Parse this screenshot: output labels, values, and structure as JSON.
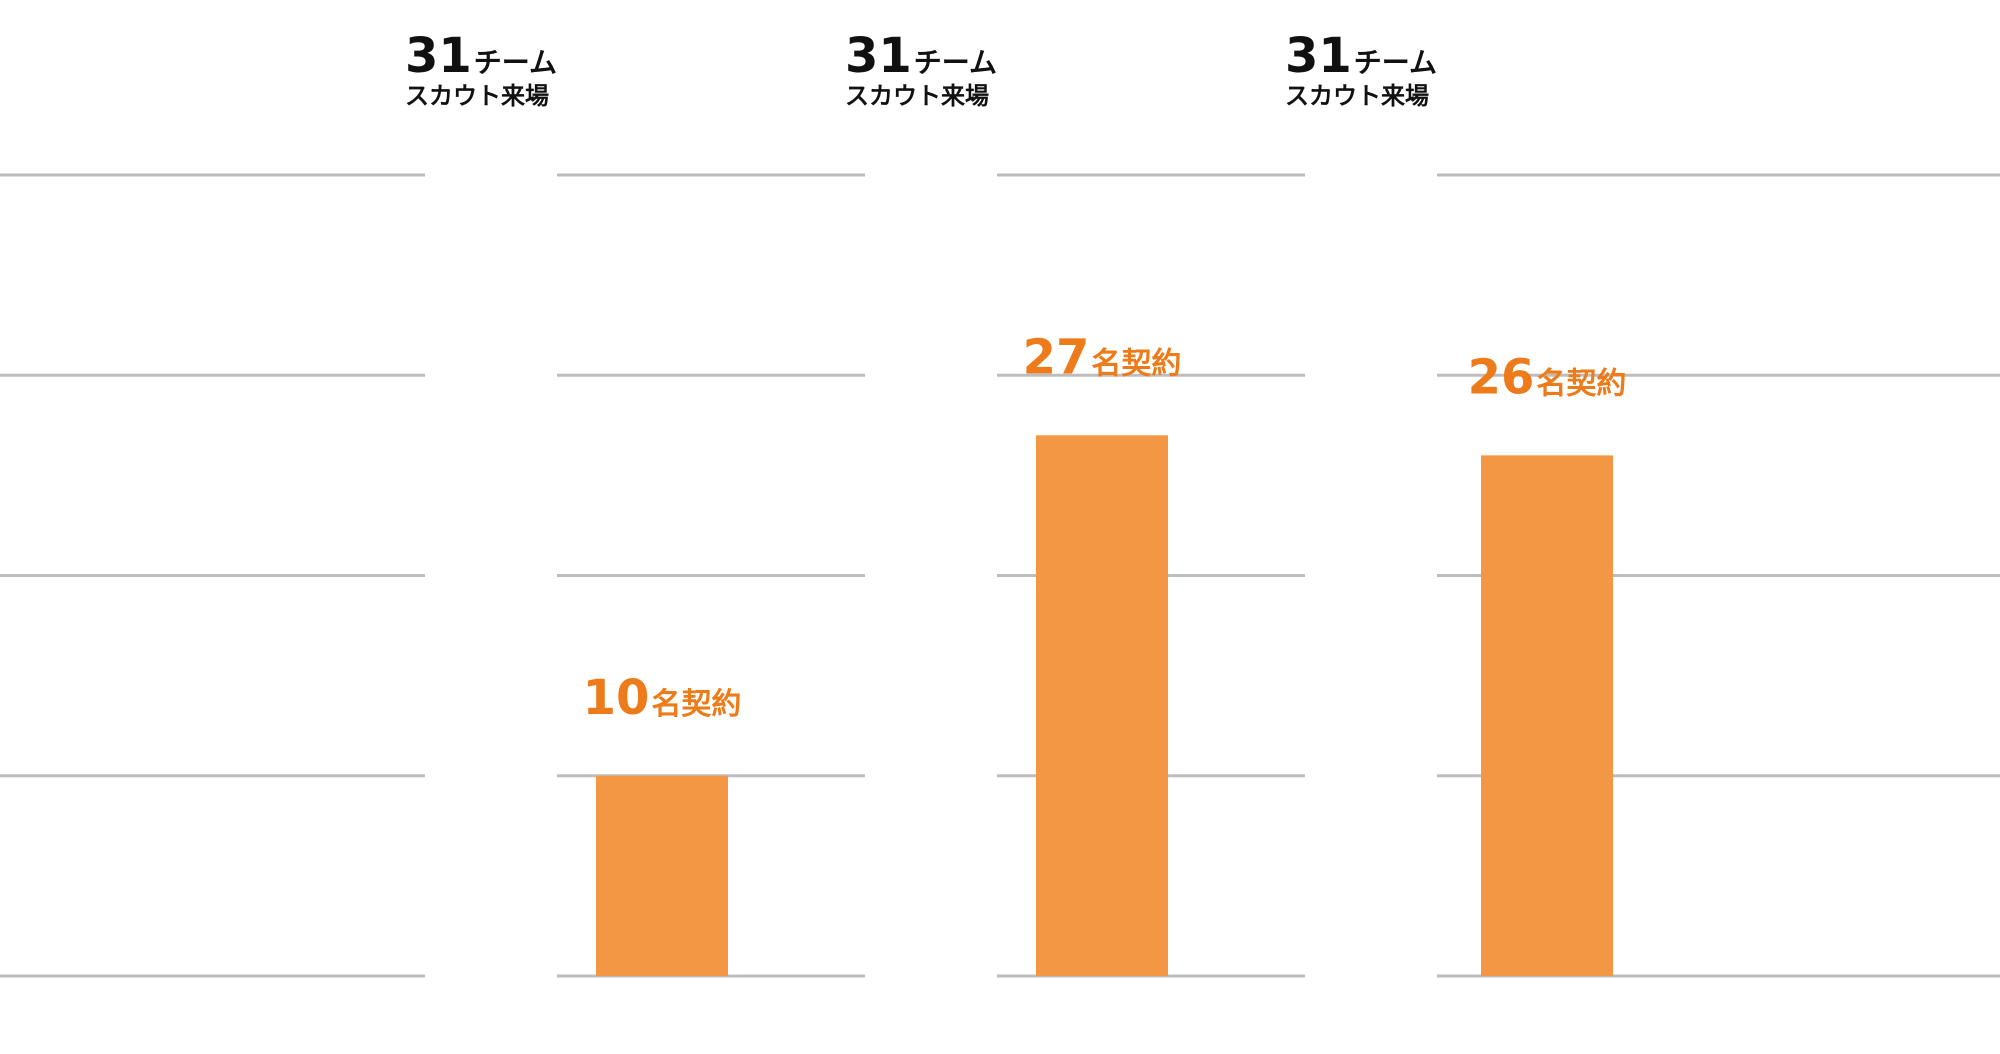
{
  "colors": {
    "bar": "#f39744",
    "contract_text": "#ee7b1a",
    "scout_text": "#111111",
    "gridline": "#bdbdbd"
  },
  "chart_data": {
    "type": "bar",
    "title": "",
    "xlabel": "",
    "ylabel": "",
    "ylim": [
      0,
      40
    ],
    "grid": true,
    "categories": [
      "",
      "",
      ""
    ],
    "values": [
      10,
      27,
      26
    ],
    "contract_labels": [
      {
        "number": "10",
        "unit": "名契約"
      },
      {
        "number": "27",
        "unit": "名契約"
      },
      {
        "number": "26",
        "unit": "名契約"
      }
    ],
    "scout_labels": [
      {
        "number": "31",
        "unit": "チーム",
        "line2": "スカウト来場"
      },
      {
        "number": "31",
        "unit": "チーム",
        "line2": "スカウト来場"
      },
      {
        "number": "31",
        "unit": "チーム",
        "line2": "スカウト来場"
      }
    ]
  }
}
